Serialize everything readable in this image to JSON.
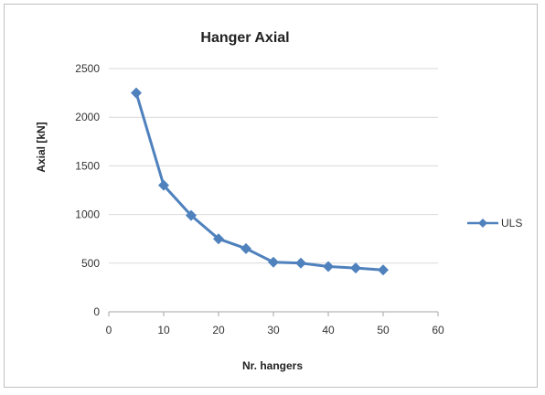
{
  "chart_data": {
    "type": "line",
    "title": "Hanger Axial",
    "xlabel": "Nr. hangers",
    "ylabel": "Axial [kN]",
    "xlim": [
      0,
      60
    ],
    "ylim": [
      0,
      2500
    ],
    "xticks": [
      0,
      10,
      20,
      30,
      40,
      50,
      60
    ],
    "yticks": [
      0,
      500,
      1000,
      1500,
      2000,
      2500
    ],
    "grid": "horizontal",
    "legend": "right",
    "series": [
      {
        "name": "ULS",
        "color": "#4f81bd",
        "marker": "diamond",
        "x": [
          5,
          10,
          15,
          20,
          25,
          30,
          35,
          40,
          45,
          50
        ],
        "y": [
          2250,
          1300,
          990,
          750,
          650,
          510,
          500,
          465,
          450,
          430
        ]
      }
    ]
  }
}
